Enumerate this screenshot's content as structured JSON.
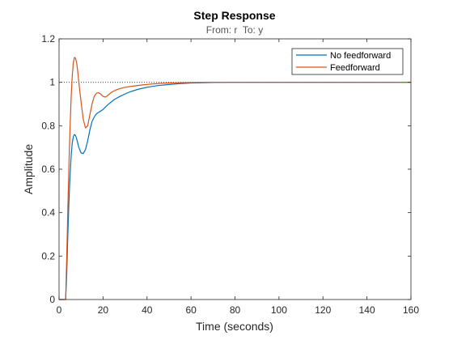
{
  "chart_data": {
    "type": "line",
    "title": "Step Response",
    "subtitle": "From: r  To: y",
    "xlabel": "Time (seconds)",
    "ylabel": "Amplitude",
    "xlim": [
      0,
      160
    ],
    "ylim": [
      0,
      1.2
    ],
    "xticks": [
      0,
      20,
      40,
      60,
      80,
      100,
      120,
      140,
      160
    ],
    "yticks": [
      0,
      0.2,
      0.4,
      0.6,
      0.8,
      1,
      1.2
    ],
    "xtick_labels": [
      "0",
      "20",
      "40",
      "60",
      "80",
      "100",
      "120",
      "140",
      "160"
    ],
    "ytick_labels": [
      "0",
      "0.2",
      "0.4",
      "0.6",
      "0.8",
      "1",
      "1.2"
    ],
    "reference_line": {
      "y": 1,
      "style": "dotted",
      "color": "#262626"
    },
    "legend_position": "top-right",
    "grid": false,
    "series": [
      {
        "name": "No feedforward",
        "color": "#0072BD",
        "x": [
          0,
          3,
          3.5,
          4,
          4.5,
          5,
          5.5,
          6,
          6.5,
          7,
          7.5,
          8,
          9,
          10,
          11,
          12,
          13,
          14,
          15,
          16,
          17,
          18,
          20,
          22,
          25,
          28,
          32,
          36,
          40,
          45,
          50,
          55,
          60,
          70,
          80,
          90,
          100,
          120,
          140,
          160
        ],
        "y": [
          0,
          0,
          0.12,
          0.3,
          0.45,
          0.57,
          0.66,
          0.72,
          0.75,
          0.76,
          0.755,
          0.74,
          0.7,
          0.675,
          0.672,
          0.69,
          0.73,
          0.78,
          0.82,
          0.84,
          0.855,
          0.862,
          0.875,
          0.895,
          0.92,
          0.937,
          0.955,
          0.968,
          0.977,
          0.985,
          0.99,
          0.994,
          0.997,
          0.999,
          1,
          1,
          1,
          1,
          1,
          1
        ]
      },
      {
        "name": "Feedforward",
        "color": "#D95319",
        "x": [
          0,
          3,
          3.5,
          4,
          4.5,
          5,
          5.5,
          6,
          6.5,
          7,
          7.5,
          8,
          8.5,
          9,
          10,
          11,
          12,
          13,
          14,
          15,
          16,
          17,
          18,
          19,
          20,
          21,
          22,
          23,
          24,
          26,
          28,
          30,
          34,
          38,
          42,
          46,
          50,
          55,
          60,
          70,
          80,
          90,
          100,
          120,
          140,
          160
        ],
        "y": [
          0,
          0,
          0.2,
          0.42,
          0.62,
          0.79,
          0.93,
          1.03,
          1.09,
          1.115,
          1.11,
          1.09,
          1.05,
          1.0,
          0.91,
          0.83,
          0.79,
          0.8,
          0.85,
          0.9,
          0.935,
          0.95,
          0.952,
          0.945,
          0.935,
          0.932,
          0.938,
          0.947,
          0.955,
          0.965,
          0.972,
          0.977,
          0.983,
          0.988,
          0.992,
          0.995,
          0.997,
          0.998,
          0.999,
          1,
          1,
          1,
          1,
          1,
          1,
          1
        ]
      }
    ]
  }
}
